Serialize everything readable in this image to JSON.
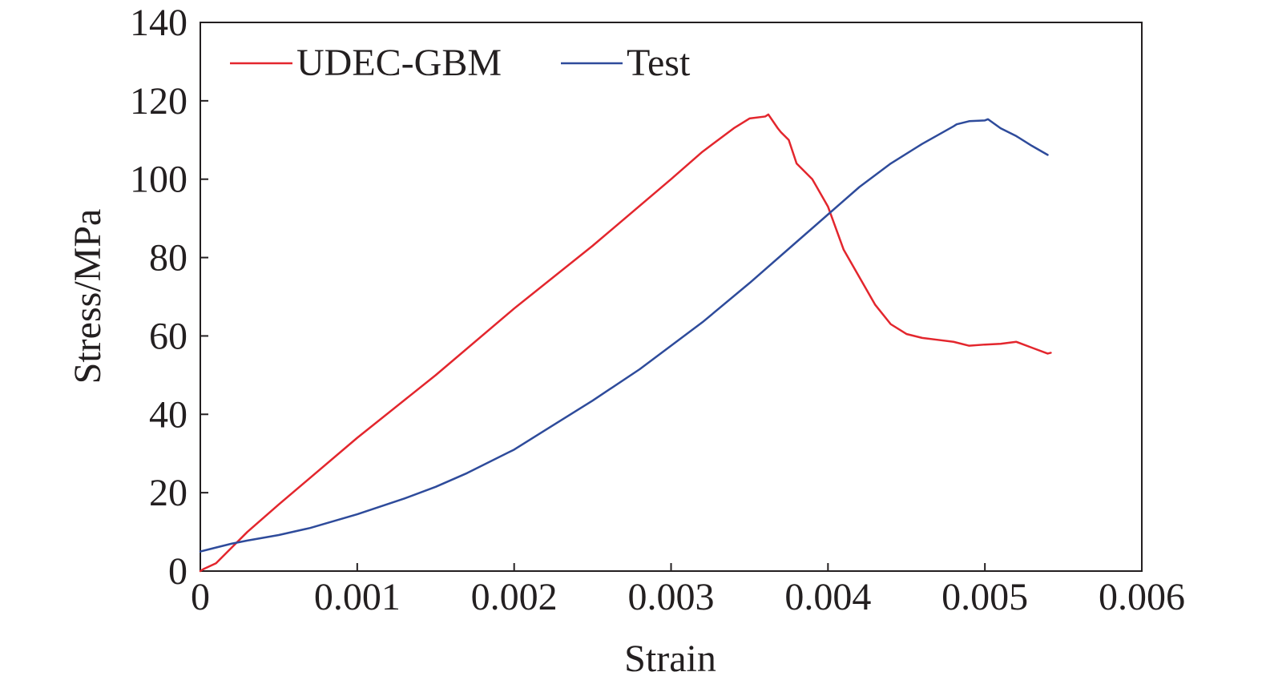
{
  "chart_data": {
    "type": "line",
    "title": "",
    "xlabel": "Strain",
    "ylabel": "Stress/MPa",
    "xlim": [
      0,
      0.006
    ],
    "ylim": [
      0,
      140
    ],
    "xticks": [
      "0",
      "0.001",
      "0.002",
      "0.003",
      "0.004",
      "0.005",
      "0.006"
    ],
    "yticks": [
      "0",
      "20",
      "40",
      "60",
      "80",
      "100",
      "120",
      "140"
    ],
    "grid": false,
    "legend_position": "top-left",
    "series": [
      {
        "name": "UDEC-GBM",
        "color": "#e3262d",
        "x": [
          0.0,
          2e-05,
          0.0001,
          0.0002,
          0.0003,
          0.0005,
          0.001,
          0.0015,
          0.002,
          0.0025,
          0.003,
          0.0032,
          0.0034,
          0.0035,
          0.0036,
          0.00362,
          0.00368,
          0.0037,
          0.00375,
          0.0038,
          0.0039,
          0.004,
          0.0041,
          0.0042,
          0.0043,
          0.0044,
          0.0045,
          0.0046,
          0.0047,
          0.0048,
          0.0049,
          0.005,
          0.0051,
          0.0052,
          0.0053,
          0.0054,
          0.00542
        ],
        "y": [
          0,
          0.5,
          2,
          6,
          10,
          17,
          34,
          50,
          67,
          83,
          100,
          107,
          113,
          115.5,
          116,
          116.5,
          113,
          112,
          110,
          104,
          100,
          93,
          82,
          75,
          68,
          63,
          60.5,
          59.5,
          59,
          58.5,
          57.5,
          57.8,
          58,
          58.5,
          57,
          55.5,
          55.7
        ]
      },
      {
        "name": "Test",
        "color": "#2e4b9b",
        "x": [
          0.0,
          0.0001,
          0.0002,
          0.0003,
          0.0005,
          0.0007,
          0.001,
          0.0013,
          0.0015,
          0.0017,
          0.002,
          0.0022,
          0.0025,
          0.0028,
          0.003,
          0.0032,
          0.0035,
          0.0038,
          0.004,
          0.0042,
          0.0044,
          0.0046,
          0.0048,
          0.00482,
          0.0049,
          0.005,
          0.00502,
          0.0051,
          0.0052,
          0.0053,
          0.0054
        ],
        "y": [
          5,
          6,
          7,
          7.8,
          9.2,
          11,
          14.5,
          18.5,
          21.5,
          25,
          31,
          36,
          43.5,
          51.5,
          57.5,
          63.5,
          73.5,
          84,
          91,
          98,
          104,
          109,
          113.5,
          114,
          114.8,
          115,
          115.3,
          113,
          111,
          108.5,
          106.2
        ]
      }
    ]
  }
}
